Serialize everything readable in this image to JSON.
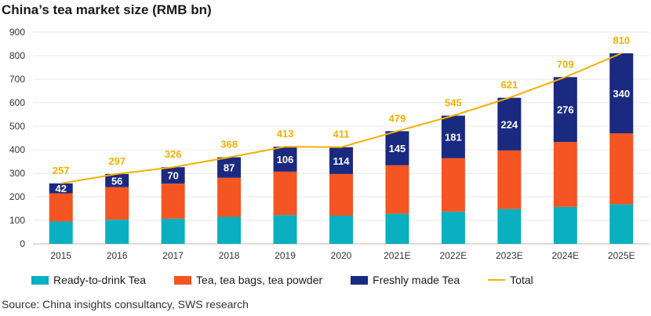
{
  "title": "China’s tea market size (RMB bn)",
  "source": "Source: China insights consultancy, SWS research",
  "colors": {
    "rtd": "#0bb0c0",
    "bags": "#f45522",
    "fresh": "#1a2a80",
    "total": "#f5b000"
  },
  "chart_data": {
    "type": "bar",
    "stacked": true,
    "title": "China’s tea market size (RMB bn)",
    "categories": [
      "2015",
      "2016",
      "2017",
      "2018",
      "2019",
      "2020",
      "2021E",
      "2022E",
      "2023E",
      "2024E",
      "2025E"
    ],
    "ylim": [
      0,
      900
    ],
    "yticks": [
      0,
      100,
      200,
      300,
      400,
      500,
      600,
      700,
      800,
      900
    ],
    "grid": true,
    "legend_position": "bottom",
    "series": [
      {
        "name": "Ready-to-drink Tea",
        "type": "bar",
        "values": [
          95,
          103,
          107,
          115,
          122,
          120,
          128,
          137,
          148,
          157,
          168
        ]
      },
      {
        "name": "Tea, tea bags, tea powder",
        "type": "bar",
        "values": [
          120,
          138,
          149,
          166,
          185,
          177,
          206,
          227,
          249,
          276,
          302
        ]
      },
      {
        "name": "Freshly made Tea",
        "type": "bar",
        "values": [
          42,
          56,
          70,
          87,
          106,
          114,
          145,
          181,
          224,
          276,
          340
        ]
      },
      {
        "name": "Total",
        "type": "line",
        "values": [
          257,
          297,
          326,
          368,
          413,
          411,
          479,
          545,
          621,
          709,
          810
        ]
      }
    ]
  }
}
